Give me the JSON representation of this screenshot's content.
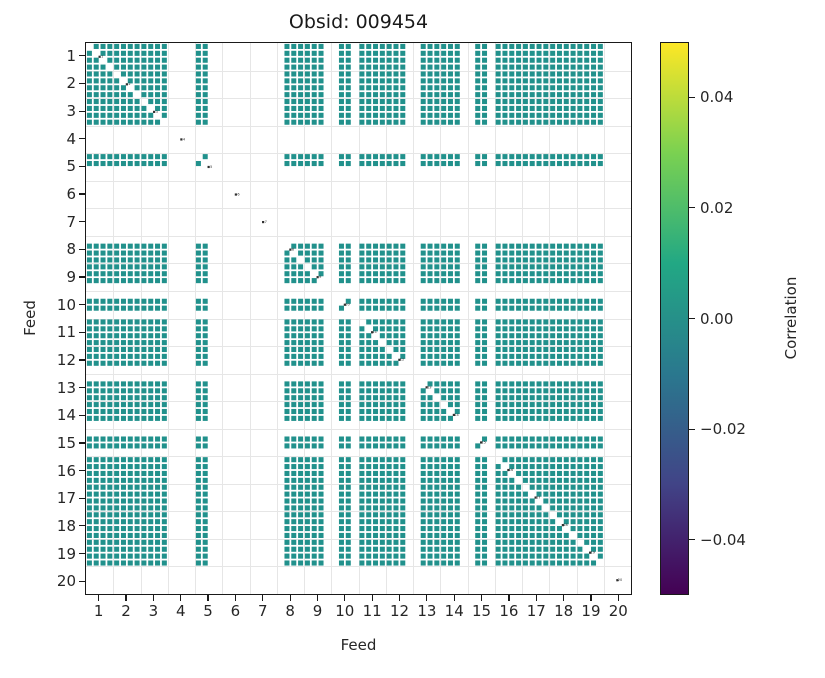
{
  "title": "Obsid: 009454",
  "axes": {
    "xlabel": "Feed",
    "ylabel": "Feed",
    "x_ticks": [
      "1",
      "2",
      "3",
      "4",
      "5",
      "6",
      "7",
      "8",
      "9",
      "10",
      "11",
      "12",
      "13",
      "14",
      "15",
      "16",
      "17",
      "18",
      "19",
      "20"
    ],
    "y_ticks": [
      "1",
      "2",
      "3",
      "4",
      "5",
      "6",
      "7",
      "8",
      "9",
      "10",
      "11",
      "12",
      "13",
      "14",
      "15",
      "16",
      "17",
      "18",
      "19",
      "20"
    ]
  },
  "colorbar": {
    "label": "Correlation",
    "vmin": -0.05,
    "vmax": 0.05,
    "ticks": [
      {
        "value": 0.04,
        "label": "0.04"
      },
      {
        "value": 0.02,
        "label": "0.02"
      },
      {
        "value": 0.0,
        "label": "0.00"
      },
      {
        "value": -0.02,
        "label": "−0.02"
      },
      {
        "value": -0.04,
        "label": "−0.04"
      }
    ],
    "stops": [
      "#440154",
      "#414487",
      "#2a788e",
      "#22a884",
      "#7ad151",
      "#fde725"
    ]
  },
  "style": {
    "cell_color": "#21918c",
    "grid_color": "#e6e6e6",
    "dot_color": "#2f2f2f",
    "spine_color": "#1a1a1a",
    "background": "#ffffff"
  },
  "chart_data": {
    "type": "heatmap",
    "title": "Obsid: 009454",
    "xlabel": "Feed",
    "ylabel": "Feed",
    "feeds": [
      1,
      2,
      3,
      4,
      5,
      6,
      7,
      8,
      9,
      10,
      11,
      12,
      13,
      14,
      15,
      16,
      17,
      18,
      19,
      20
    ],
    "sub_bands_per_feed": 4,
    "feed_active_sub_bands": {
      "1": [
        1,
        1,
        1,
        1
      ],
      "2": [
        1,
        1,
        1,
        1
      ],
      "3": [
        1,
        1,
        1,
        1
      ],
      "4": [
        0,
        0,
        0,
        0
      ],
      "5": [
        1,
        1,
        0,
        0
      ],
      "6": [
        0,
        0,
        0,
        0
      ],
      "7": [
        0,
        0,
        0,
        0
      ],
      "8": [
        0,
        1,
        1,
        1
      ],
      "9": [
        1,
        1,
        1,
        0
      ],
      "10": [
        0,
        1,
        1,
        0
      ],
      "11": [
        1,
        1,
        1,
        1
      ],
      "12": [
        1,
        1,
        1,
        0
      ],
      "13": [
        0,
        1,
        1,
        1
      ],
      "14": [
        1,
        1,
        1,
        0
      ],
      "15": [
        0,
        1,
        1,
        0
      ],
      "16": [
        1,
        1,
        1,
        1
      ],
      "17": [
        1,
        1,
        1,
        1
      ],
      "18": [
        1,
        1,
        1,
        1
      ],
      "19": [
        1,
        1,
        1,
        1
      ],
      "20": [
        0,
        0,
        0,
        0
      ]
    },
    "cell_rule": "cell(i,j) filled with fill_value when sub-band i and sub-band j are both active; exact diagonal masked white with tiny feed-number mark",
    "fill_value": 0.0,
    "colormap": "viridis",
    "vmin": -0.05,
    "vmax": 0.05,
    "grid": true,
    "legend_position": "colorbar-right"
  }
}
